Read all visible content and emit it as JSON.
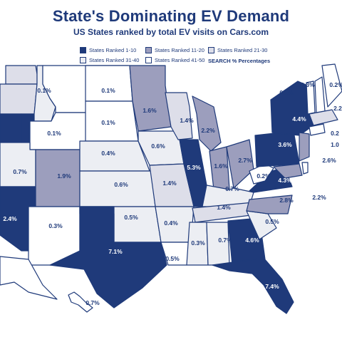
{
  "title": "State's Dominating EV Demand",
  "subtitle": "US States ranked by total EV visits on Cars.com",
  "legend": {
    "tier1": "States Ranked 1-10",
    "tier2": "States Ranked 11-20",
    "tier3": "States Ranked 21-30",
    "tier4": "States Ranked 31-40",
    "tier5": "States Ranked 41-50",
    "note": "SEARCH % Percentages"
  },
  "colors": {
    "tier1": "#1f3a7a",
    "tier2": "#9c9ebd",
    "tier3": "#dddee9",
    "tier4": "#eceef3",
    "tier5": "#ffffff",
    "outline": "#1f3a7a"
  },
  "states": [
    {
      "id": "WA",
      "value": "",
      "tier": 3
    },
    {
      "id": "OR",
      "value": "",
      "tier": 3
    },
    {
      "id": "CA",
      "value": "",
      "tier": 1
    },
    {
      "id": "NV",
      "value": "2.4%",
      "tier": 1
    },
    {
      "id": "ID",
      "value": "",
      "tier": 4
    },
    {
      "id": "MT",
      "value": "0.1%",
      "tier": 5
    },
    {
      "id": "WY",
      "value": "0.1%",
      "tier": 5
    },
    {
      "id": "UT",
      "value": "0.7%",
      "tier": 4
    },
    {
      "id": "AZ",
      "value": "",
      "tier": 1
    },
    {
      "id": "CO",
      "value": "1.9%",
      "tier": 2
    },
    {
      "id": "NM",
      "value": "0.3%",
      "tier": 5
    },
    {
      "id": "ND",
      "value": "0.1%",
      "tier": 5
    },
    {
      "id": "SD",
      "value": "0.1%",
      "tier": 5
    },
    {
      "id": "NE",
      "value": "0.4%",
      "tier": 4
    },
    {
      "id": "KS",
      "value": "0.6%",
      "tier": 4
    },
    {
      "id": "OK",
      "value": "0.5%",
      "tier": 4
    },
    {
      "id": "TX",
      "value": "7.1%",
      "tier": 1
    },
    {
      "id": "MN",
      "value": "1.6%",
      "tier": 2
    },
    {
      "id": "IA",
      "value": "0.6%",
      "tier": 4
    },
    {
      "id": "MO",
      "value": "1.4%",
      "tier": 3
    },
    {
      "id": "AR",
      "value": "0.4%",
      "tier": 4
    },
    {
      "id": "LA",
      "value": "0.5%",
      "tier": 5
    },
    {
      "id": "WI",
      "value": "1.4%",
      "tier": 3
    },
    {
      "id": "IL",
      "value": "5.3%",
      "tier": 1
    },
    {
      "id": "MI",
      "value": "2.2%",
      "tier": 2
    },
    {
      "id": "IN",
      "value": "1.6%",
      "tier": 2
    },
    {
      "id": "OH",
      "value": "2.7%",
      "tier": 2
    },
    {
      "id": "KY",
      "value": "0.7%",
      "tier": 4
    },
    {
      "id": "TN",
      "value": "1.4%",
      "tier": 3
    },
    {
      "id": "MS",
      "value": "0.3%",
      "tier": 4
    },
    {
      "id": "AL",
      "value": "0.7%",
      "tier": 4
    },
    {
      "id": "GA",
      "value": "4.6%",
      "tier": 1
    },
    {
      "id": "FL",
      "value": "7.4%",
      "tier": 1
    },
    {
      "id": "SC",
      "value": "0.5%",
      "tier": 4
    },
    {
      "id": "NC",
      "value": "2.8%",
      "tier": 2
    },
    {
      "id": "VA",
      "value": "4.3%",
      "tier": 1
    },
    {
      "id": "WV",
      "value": "0.2%",
      "tier": 5
    },
    {
      "id": "PA",
      "value": "3.6%",
      "tier": 1
    },
    {
      "id": "NY",
      "value": "4.4%",
      "tier": 1
    },
    {
      "id": "NJ",
      "value": "2.6%",
      "tier": 2
    },
    {
      "id": "MD",
      "value": "2.2%",
      "tier": 2
    },
    {
      "id": "DE",
      "value": "1.0",
      "tier": 5
    },
    {
      "id": "CT",
      "value": "0.2",
      "tier": 5
    },
    {
      "id": "VT",
      "value": "0.1%",
      "tier": 5
    },
    {
      "id": "NH",
      "value": "0.3%",
      "tier": 5
    },
    {
      "id": "ME",
      "value": "0.2%",
      "tier": 5
    },
    {
      "id": "MA",
      "value": "2.2",
      "tier": 3
    },
    {
      "id": "AK",
      "value": "",
      "tier": 5
    },
    {
      "id": "HI",
      "value": "0.7%",
      "tier": 5
    },
    {
      "id": "WA2",
      "value": "1%",
      "tier": 3
    }
  ]
}
